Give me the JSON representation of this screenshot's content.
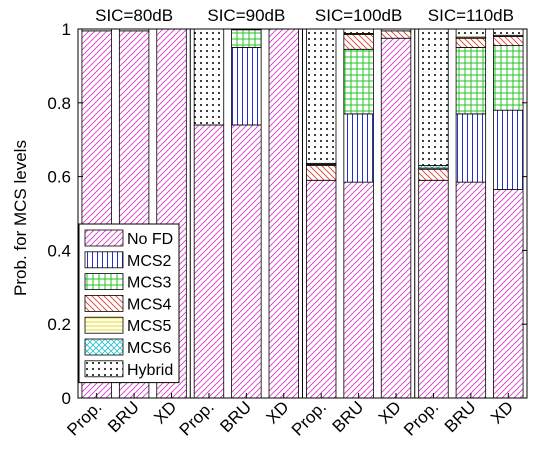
{
  "chart_data": {
    "type": "bar",
    "stacked": true,
    "ylabel": "Prob. for MCS levels",
    "xlabel": "",
    "ylim": [
      0,
      1
    ],
    "yticks": [
      0,
      0.2,
      0.4,
      0.6,
      0.8,
      1
    ],
    "grid": false,
    "legend_position": "bottom-left",
    "groups": [
      "SIC=80dB",
      "SIC=90dB",
      "SIC=100dB",
      "SIC=110dB"
    ],
    "categories": [
      "Prop.",
      "BRU",
      "XD",
      "Prop.",
      "BRU",
      "XD",
      "Prop.",
      "BRU",
      "XD",
      "Prop.",
      "BRU",
      "XD"
    ],
    "series": [
      {
        "name": "No FD",
        "color": "#d63cc8",
        "pattern": "diag-right",
        "values": [
          0.995,
          0.995,
          1.0,
          0.74,
          0.74,
          1.0,
          0.59,
          0.585,
          0.975,
          0.59,
          0.585,
          0.565
        ]
      },
      {
        "name": "MCS2",
        "color": "#2430c8",
        "pattern": "vertical",
        "values": [
          0,
          0,
          0,
          0,
          0.21,
          0,
          0,
          0.185,
          0,
          0,
          0.185,
          0.215
        ]
      },
      {
        "name": "MCS3",
        "color": "#22c322",
        "pattern": "grid",
        "values": [
          0,
          0,
          0,
          0,
          0.048,
          0,
          0,
          0.175,
          0,
          0,
          0.18,
          0.175
        ]
      },
      {
        "name": "MCS4",
        "color": "#d9402e",
        "pattern": "diag-left",
        "values": [
          0,
          0,
          0,
          0,
          0,
          0,
          0.04,
          0.04,
          0.02,
          0.03,
          0.025,
          0.025
        ]
      },
      {
        "name": "MCS5",
        "color": "#e6e000",
        "pattern": "horizontal",
        "values": [
          0,
          0,
          0,
          0,
          0,
          0,
          0.003,
          0.003,
          0,
          0.003,
          0.003,
          0.003
        ]
      },
      {
        "name": "MCS6",
        "color": "#20c0c8",
        "pattern": "cross",
        "values": [
          0,
          0,
          0,
          0,
          0,
          0,
          0.003,
          0,
          0,
          0.007,
          0,
          0
        ]
      },
      {
        "name": "Hybrid",
        "color": "#000000",
        "pattern": "dots",
        "values": [
          0.005,
          0.005,
          0,
          0.26,
          0.002,
          0,
          0.364,
          0.012,
          0.005,
          0.37,
          0.022,
          0.017
        ]
      }
    ]
  }
}
